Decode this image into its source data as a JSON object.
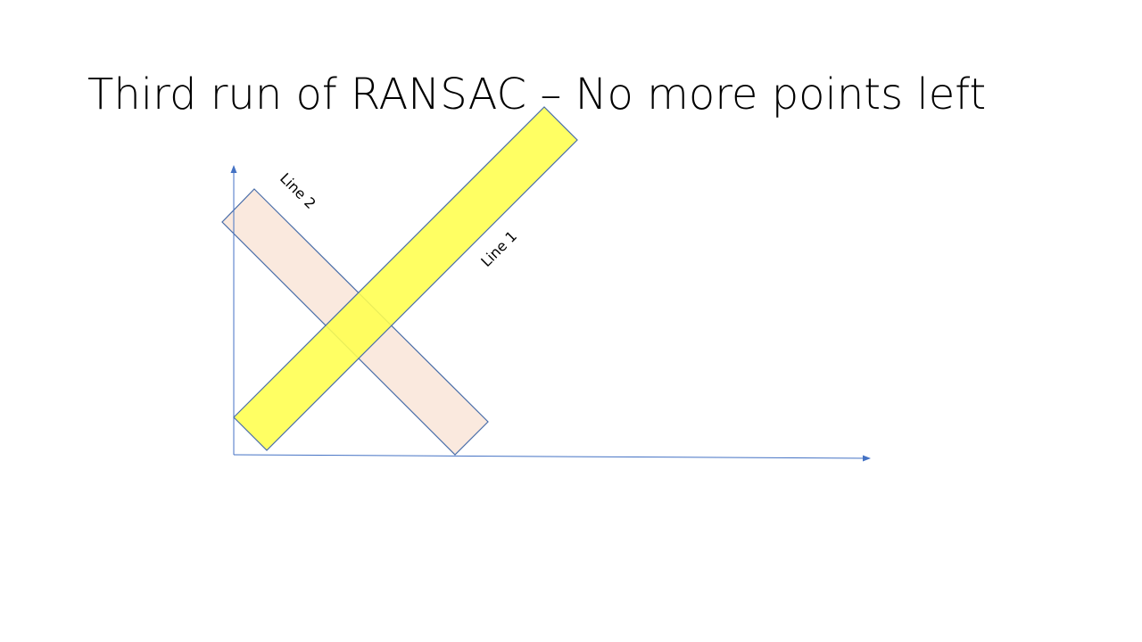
{
  "slide": {
    "title": "Third run of RANSAC – No more points left"
  },
  "diagram": {
    "bands": [
      {
        "label": "Line 1",
        "fill_color": "#ffff4d",
        "stroke_color": "#4a6ea9"
      },
      {
        "label": "Line 2",
        "fill_color": "#fae9de",
        "stroke_color": "#4a6ea9"
      }
    ],
    "axis_color": "#4472c4"
  }
}
